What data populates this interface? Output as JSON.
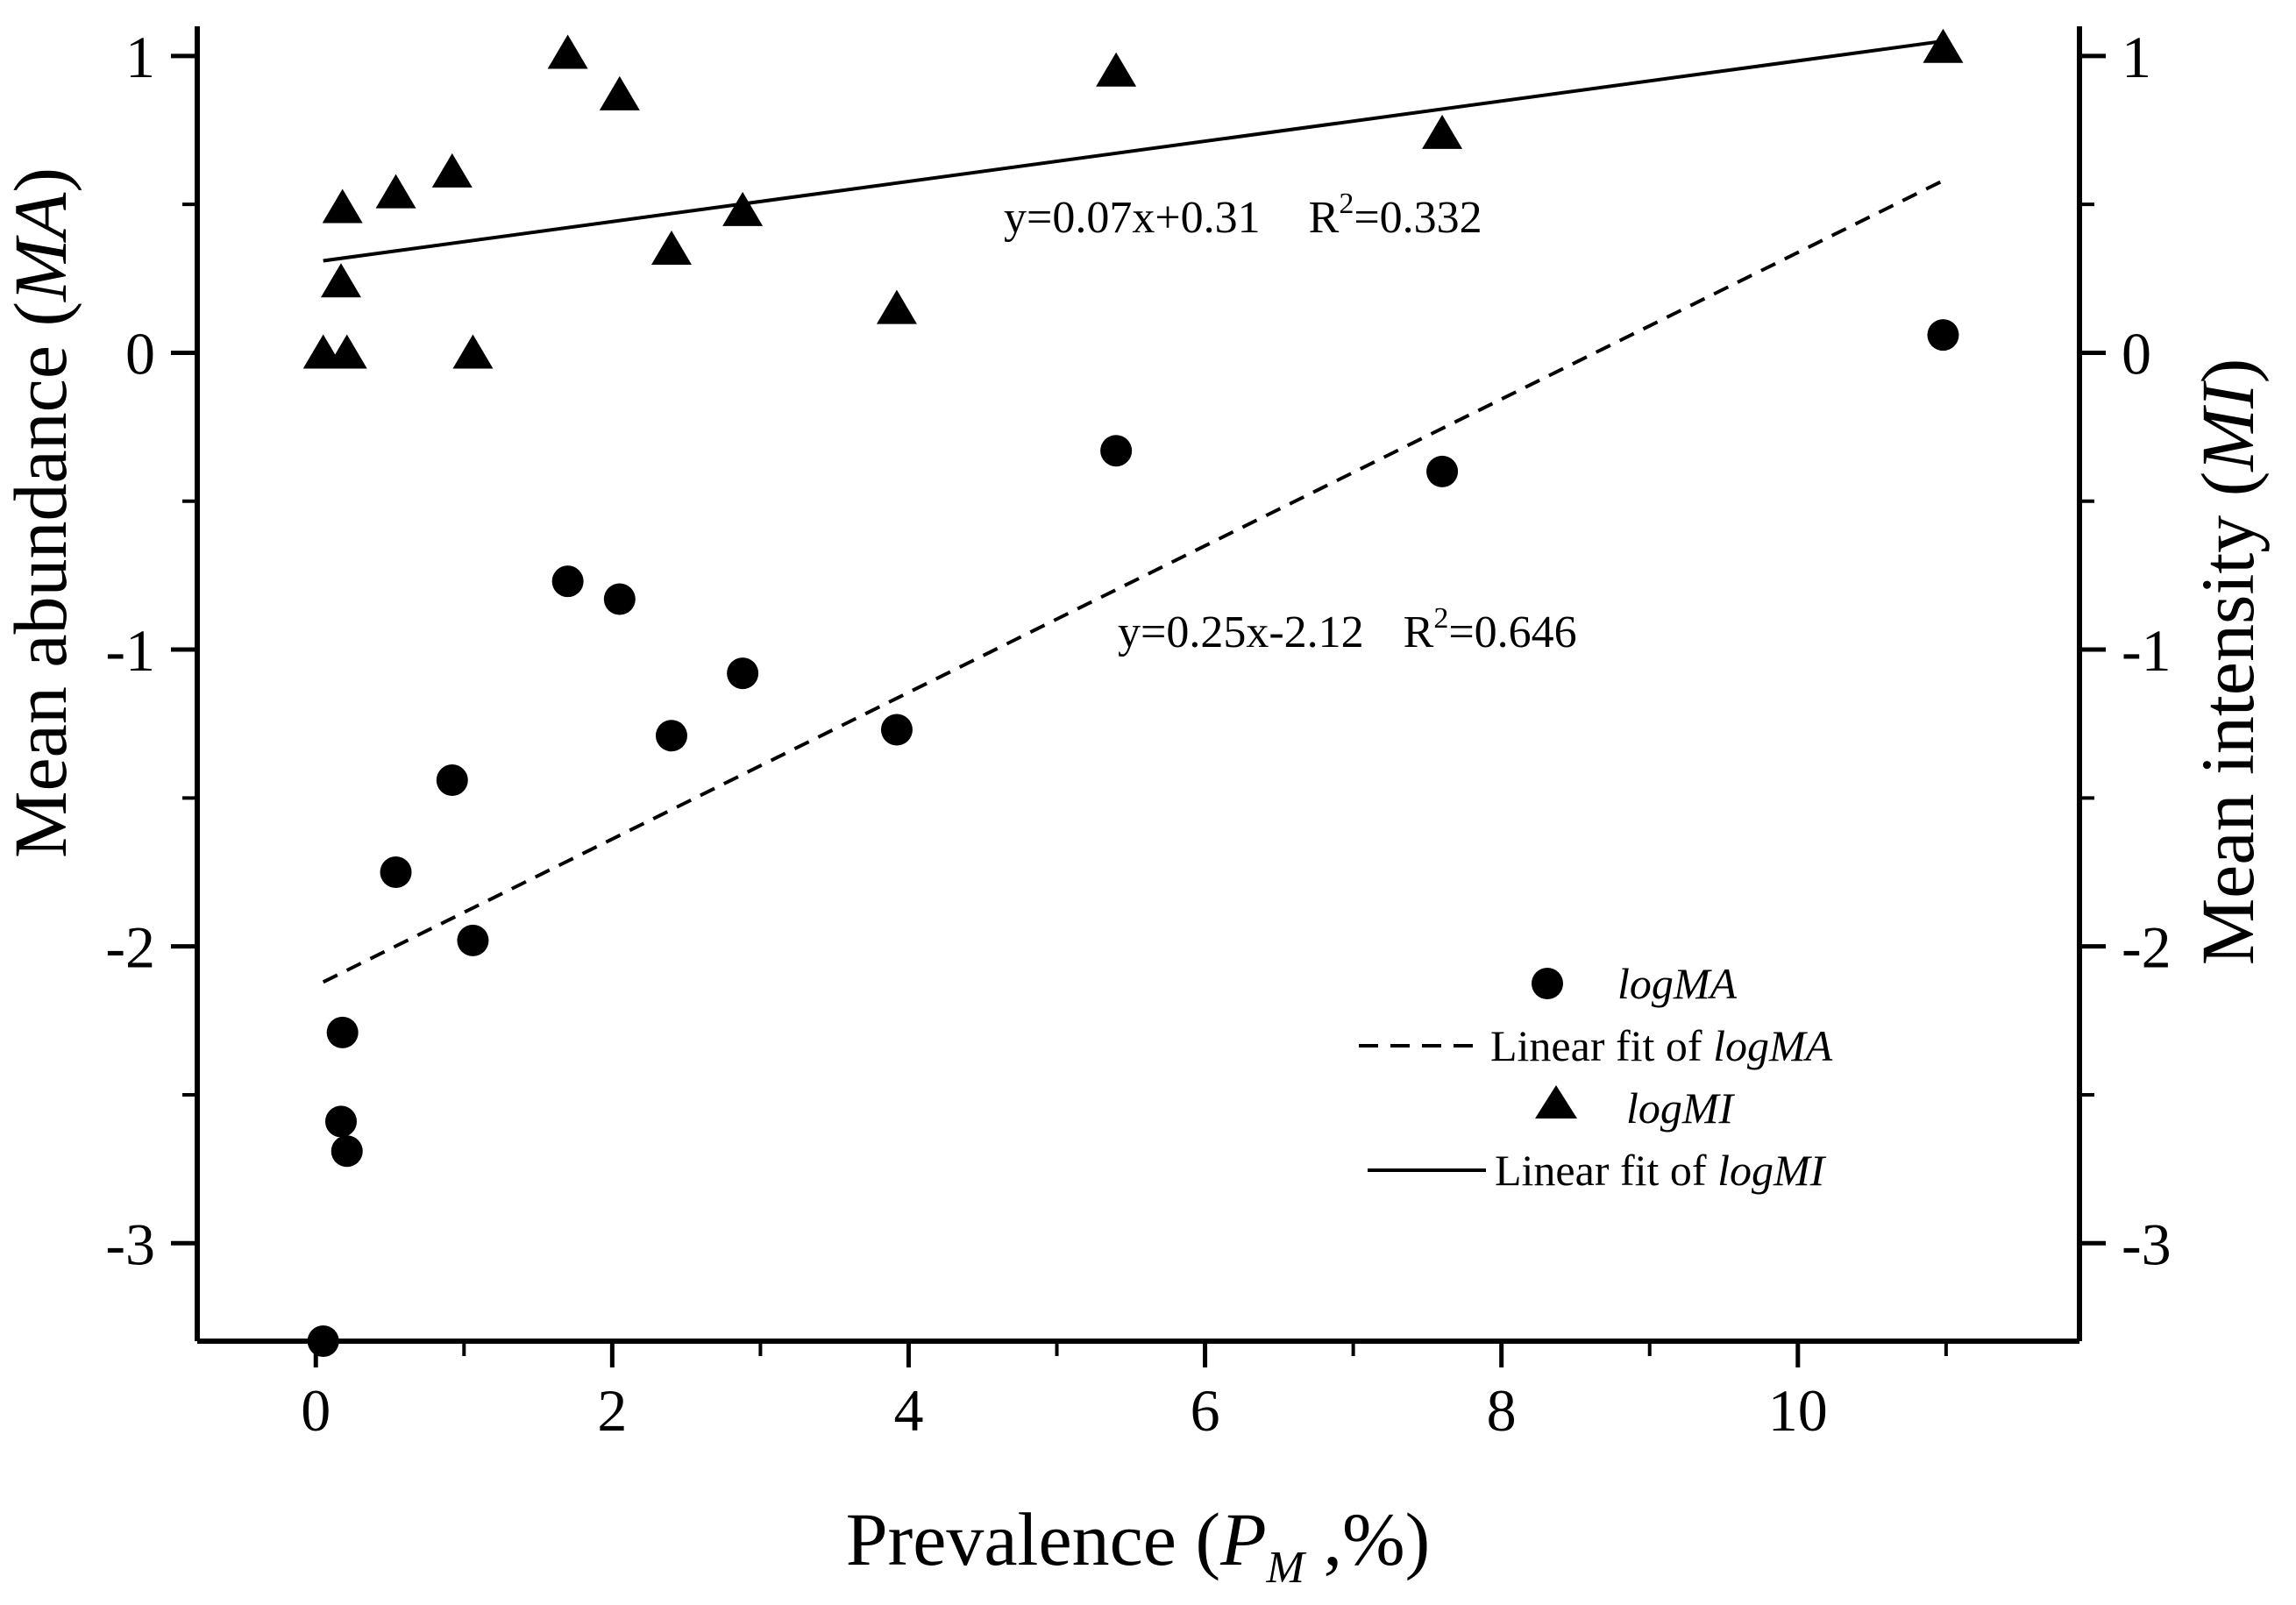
{
  "chart_data": {
    "type": "scatter",
    "title": "",
    "xlabel": {
      "prefix": "Prevalence (",
      "var": "P",
      "sub": "M",
      "suffix": " ,%)"
    },
    "ylabel_left": {
      "prefix": "Mean abundance (",
      "var": "MA",
      "suffix": ")"
    },
    "ylabel_right": {
      "prefix": "Mean intensity (",
      "var": "MI",
      "suffix": ")"
    },
    "xlim": [
      -0.8,
      11.9
    ],
    "ylim": [
      -3.33,
      1.1
    ],
    "x_ticks": [
      0,
      2,
      4,
      6,
      8,
      10
    ],
    "x_tick_labels": [
      "0",
      "2",
      "4",
      "6",
      "8",
      "10"
    ],
    "y_ticks": [
      1,
      0,
      -1,
      -2,
      -3
    ],
    "y_tick_labels": [
      "1",
      "0",
      "-1",
      "-2",
      "-3"
    ],
    "grid": false,
    "legend_position": "bottom-right",
    "series": [
      {
        "name": "logMA",
        "marker": "circle",
        "points": [
          [
            0.05,
            -3.33
          ],
          [
            0.17,
            -2.59
          ],
          [
            0.21,
            -2.69
          ],
          [
            0.18,
            -2.29
          ],
          [
            0.54,
            -1.75
          ],
          [
            0.92,
            -1.44
          ],
          [
            1.06,
            -1.98
          ],
          [
            1.7,
            -0.77
          ],
          [
            2.05,
            -0.83
          ],
          [
            2.4,
            -1.29
          ],
          [
            2.88,
            -1.08
          ],
          [
            3.92,
            -1.27
          ],
          [
            5.4,
            -0.33
          ],
          [
            7.6,
            -0.4
          ],
          [
            10.98,
            0.06
          ]
        ]
      },
      {
        "name": "logMI",
        "marker": "triangle",
        "points": [
          [
            0.05,
            0.0
          ],
          [
            0.21,
            0.0
          ],
          [
            0.17,
            0.24
          ],
          [
            0.18,
            0.49
          ],
          [
            0.54,
            0.54
          ],
          [
            0.92,
            0.61
          ],
          [
            1.06,
            0.0
          ],
          [
            1.7,
            1.01
          ],
          [
            2.05,
            0.87
          ],
          [
            2.4,
            0.35
          ],
          [
            2.88,
            0.48
          ],
          [
            3.92,
            0.15
          ],
          [
            5.4,
            0.95
          ],
          [
            7.6,
            0.74
          ],
          [
            10.98,
            1.03
          ]
        ]
      }
    ],
    "fits": [
      {
        "name": "Linear fit of logMA",
        "style": "dashed",
        "x": [
          0.05,
          10.98
        ],
        "y": [
          -2.12,
          0.58
        ]
      },
      {
        "name": "Linear fit of logMI",
        "style": "solid",
        "x": [
          0.05,
          10.98
        ],
        "y": [
          0.31,
          1.05
        ]
      }
    ],
    "annotations": [
      {
        "eq": "y=0.07x+0.31",
        "r2_label": "R",
        "r2_sup": "2",
        "r2_value": "=0.332"
      },
      {
        "eq": "y=0.25x-2.12",
        "r2_label": "R",
        "r2_sup": "2",
        "r2_value": "=0.646"
      }
    ],
    "legend": [
      {
        "text": "logMA",
        "italic": true
      },
      {
        "prefix": "Linear fit of  ",
        "text": "logMA"
      },
      {
        "text": "logMI",
        "italic": true
      },
      {
        "prefix": "Linear fit of  ",
        "text": "logMI"
      }
    ]
  }
}
